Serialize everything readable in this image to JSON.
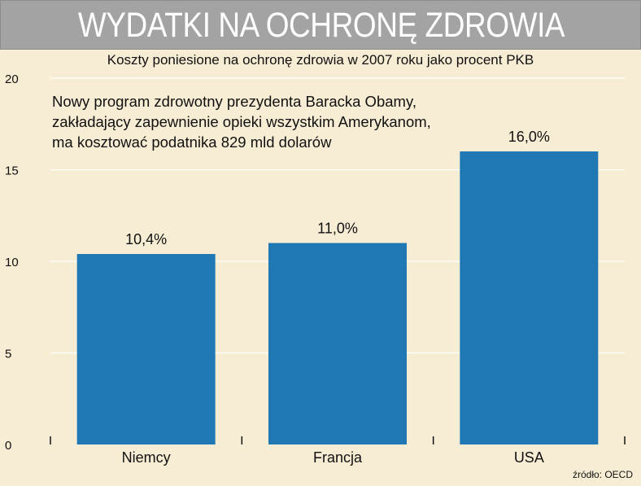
{
  "title": "WYDATKI NA OCHRONĘ ZDROWIA",
  "source": "źródło: OECD",
  "colors": {
    "background": "#f7ecd4",
    "title_bar": "#a3a3a3",
    "bar": "#1f78b4",
    "grid": "#ffffff"
  },
  "chart_data": {
    "type": "bar",
    "title": "Koszty poniesione na ochronę zdrowia w 2007 roku jako procent PKB",
    "annotation": [
      "Nowy program zdrowotny prezydenta Baracka Obamy,",
      "zakładający zapewnienie opieki wszystkim Amerykanom,",
      "ma kosztować podatnika 829 mld dolarów"
    ],
    "categories": [
      "Niemcy",
      "Francja",
      "USA"
    ],
    "values": [
      10.4,
      11.0,
      16.0
    ],
    "data_labels": [
      "10,4%",
      "11,0%",
      "16,0%"
    ],
    "xlabel": "",
    "ylabel": "",
    "ylim": [
      0,
      20
    ],
    "yticks": [
      0,
      5,
      10,
      15,
      20
    ],
    "grid": true
  }
}
